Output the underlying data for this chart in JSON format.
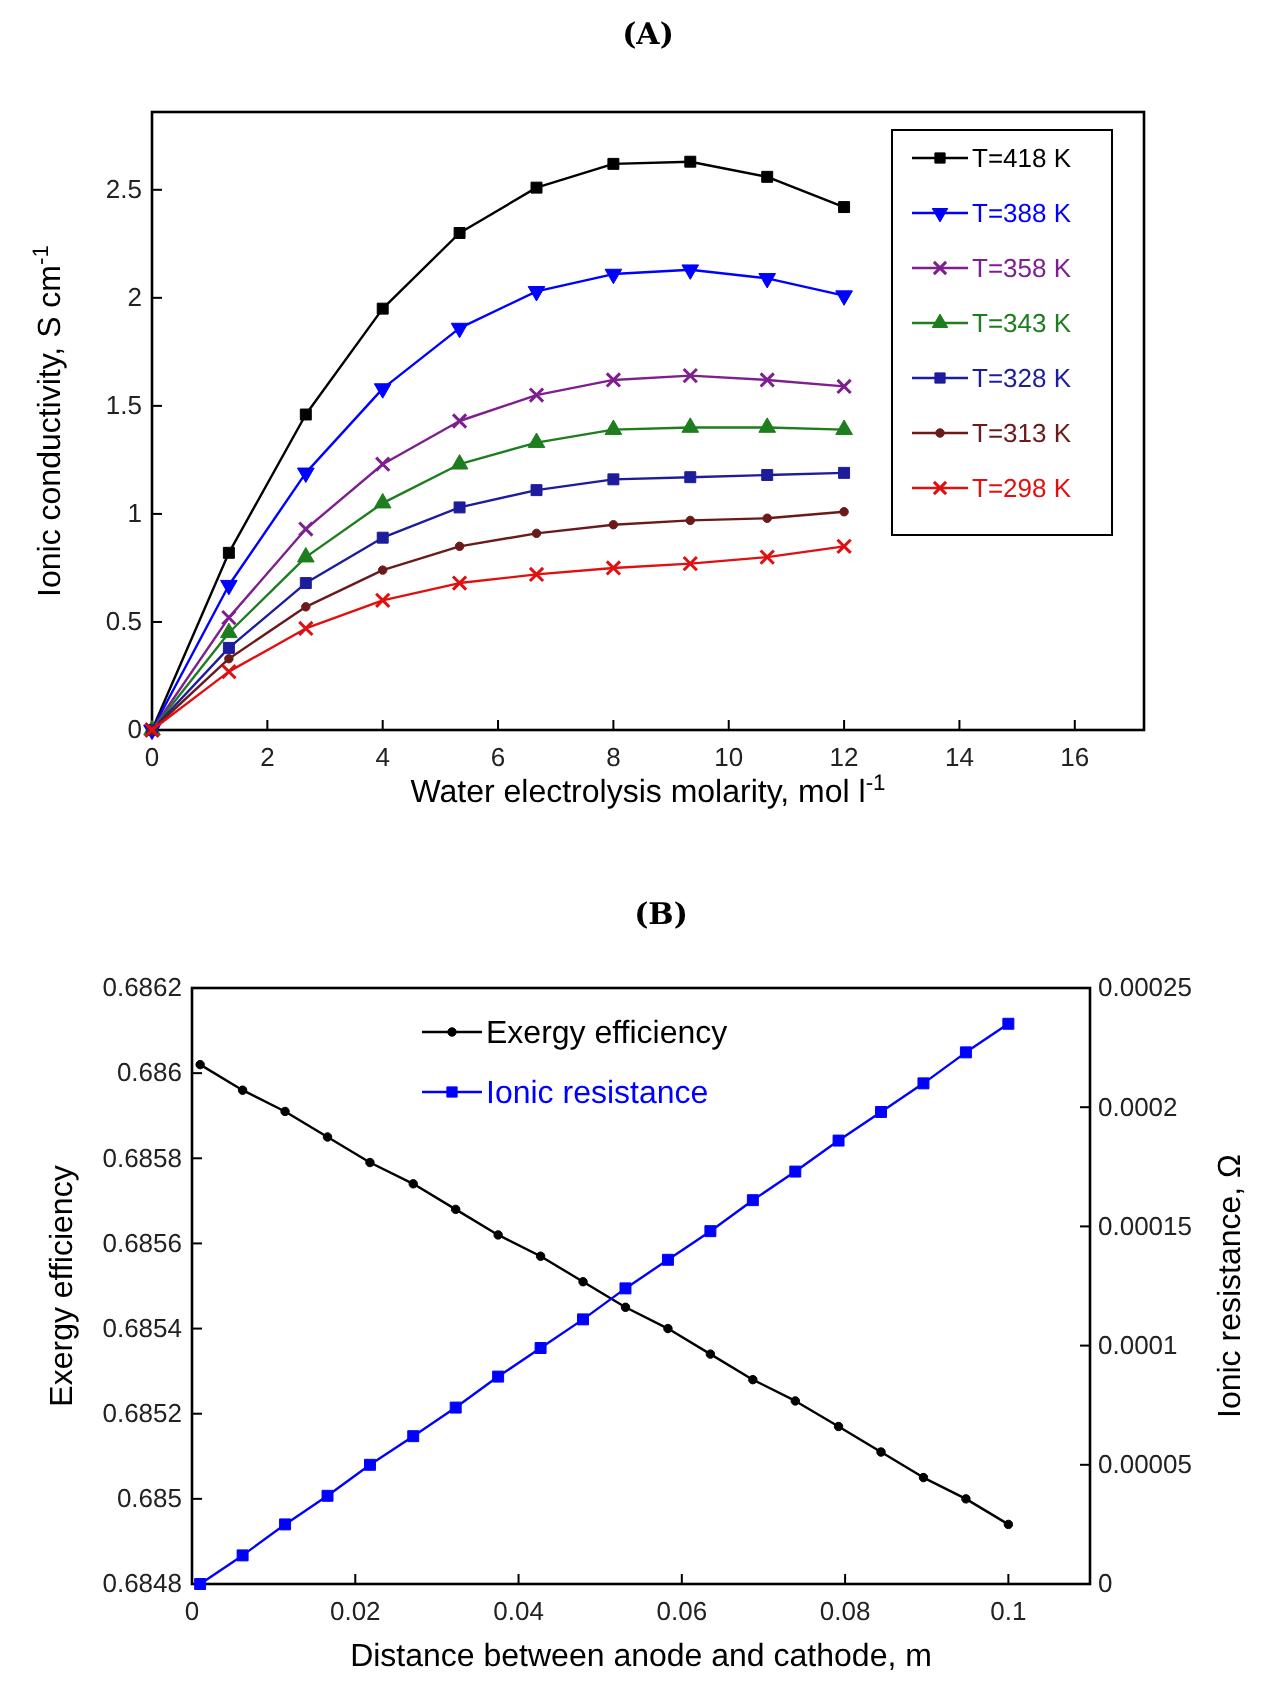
{
  "chart_data": [
    {
      "type": "line",
      "title": "(A)",
      "xlabel": "Water electrolysis molarity, mol l$^{-1}$",
      "ylabel": "Ionic conductivity, S cm$^{-1}$",
      "x": [
        0,
        1.333,
        2.667,
        4,
        5.333,
        6.667,
        8,
        9.333,
        10.667,
        12
      ],
      "xlim": [
        0,
        17.2
      ],
      "xticks": [
        0,
        2,
        4,
        6,
        8,
        10,
        12,
        14,
        16
      ],
      "ylim": [
        0,
        2.86
      ],
      "yticks": [
        0,
        0.5,
        1,
        1.5,
        2,
        2.5
      ],
      "legend": "top right",
      "series": [
        {
          "name": "T=418 K",
          "color": "#000000",
          "marker": "square",
          "values": [
            0,
            0.82,
            1.46,
            1.95,
            2.3,
            2.51,
            2.62,
            2.63,
            2.56,
            2.42
          ]
        },
        {
          "name": "T=388 K",
          "color": "#0000ff",
          "marker": "triangle",
          "values": [
            0,
            0.67,
            1.19,
            1.58,
            1.86,
            2.03,
            2.11,
            2.13,
            2.09,
            2.01
          ]
        },
        {
          "name": "T=358 K",
          "color": "#7f1f8f",
          "marker": "cross",
          "values": [
            0,
            0.52,
            0.93,
            1.23,
            1.43,
            1.55,
            1.62,
            1.64,
            1.62,
            1.59
          ]
        },
        {
          "name": "T=343 K",
          "color": "#1e7d1e",
          "marker": "triangle",
          "values": [
            0,
            0.45,
            0.8,
            1.05,
            1.23,
            1.33,
            1.39,
            1.4,
            1.4,
            1.39
          ]
        },
        {
          "name": "T=328 K",
          "color": "#1c1c9c",
          "marker": "square",
          "values": [
            0,
            0.38,
            0.68,
            0.89,
            1.03,
            1.11,
            1.16,
            1.17,
            1.18,
            1.19
          ]
        },
        {
          "name": "T=313 K",
          "color": "#6b1a1a",
          "marker": "circle",
          "values": [
            0,
            0.33,
            0.57,
            0.74,
            0.85,
            0.91,
            0.95,
            0.97,
            0.98,
            1.01
          ]
        },
        {
          "name": "T=298 K",
          "color": "#e01010",
          "marker": "cross",
          "values": [
            0,
            0.27,
            0.47,
            0.6,
            0.68,
            0.72,
            0.75,
            0.77,
            0.8,
            0.85
          ]
        }
      ]
    },
    {
      "type": "line",
      "title": "(B)",
      "xlabel": "Distance between anode and cathode, m",
      "ylabel": "Exergy efficiency",
      "y2label": "Ionic resistance, Ω",
      "x": [
        0.001,
        0.0062,
        0.0114,
        0.0166,
        0.0218,
        0.0271,
        0.0323,
        0.0375,
        0.0427,
        0.0479,
        0.0531,
        0.0583,
        0.0635,
        0.0687,
        0.0739,
        0.0792,
        0.0844,
        0.0896,
        0.0948,
        0.1
      ],
      "xlim": [
        0,
        0.11
      ],
      "xticks": [
        0,
        0.02,
        0.04,
        0.06,
        0.08,
        0.1
      ],
      "ylim": [
        0.6848,
        0.6862
      ],
      "yticks": [
        0.6848,
        0.685,
        0.6852,
        0.6854,
        0.6856,
        0.6858,
        0.686,
        0.6862
      ],
      "y2lim": [
        0,
        0.00025
      ],
      "y2ticks": [
        0,
        {
          "value": 5e-05,
          "label": "0.00005"
        },
        0.0001,
        0.00015,
        0.0002,
        0.00025
      ],
      "legend": "top left",
      "series": [
        {
          "name": "Exergy efficiency",
          "color": "#000000",
          "marker": "circle",
          "values": [
            0.68602,
            0.68596,
            0.68591,
            0.68585,
            0.68579,
            0.68574,
            0.68568,
            0.68562,
            0.68557,
            0.68551,
            0.68545,
            0.6854,
            0.68534,
            0.68528,
            0.68523,
            0.68517,
            0.68511,
            0.68505,
            0.685,
            0.68494
          ]
        },
        {
          "name": "Ionic resistance",
          "color": "#0000ff",
          "marker": "square",
          "axis": "y2",
          "values": [
            0,
            1.2e-05,
            2.5e-05,
            3.7e-05,
            5e-05,
            6.2e-05,
            7.4e-05,
            8.7e-05,
            9.9e-05,
            0.000111,
            0.000124,
            0.000136,
            0.000148,
            0.000161,
            0.000173,
            0.000186,
            0.000198,
            0.00021,
            0.000223,
            0.000235
          ]
        }
      ]
    }
  ]
}
